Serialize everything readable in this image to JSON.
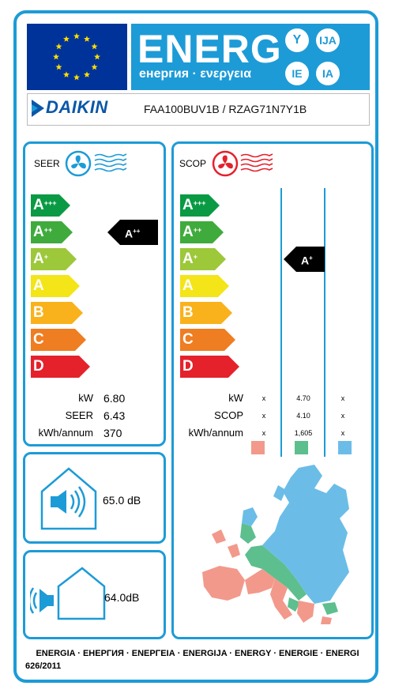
{
  "header": {
    "energ_word": "ENERG",
    "energ_sub": "енергия · ενεργεια",
    "suffixes": [
      "Y",
      "IJA",
      "IE",
      "IA"
    ]
  },
  "supplier": {
    "brand": "DAIKIN",
    "model": "FAA100BUV1B / RZAG71N7Y1B"
  },
  "cooling": {
    "label": "SEER",
    "classes": [
      {
        "letter": "A",
        "plus": "+++",
        "color": "#0a9a44",
        "width": 50
      },
      {
        "letter": "A",
        "plus": "++",
        "color": "#3fab3c",
        "width": 53
      },
      {
        "letter": "A",
        "plus": "+",
        "color": "#9dc83a",
        "width": 58
      },
      {
        "letter": "A",
        "plus": "",
        "color": "#f3e518",
        "width": 62
      },
      {
        "letter": "B",
        "plus": "",
        "color": "#f9b21c",
        "width": 66
      },
      {
        "letter": "C",
        "plus": "",
        "color": "#ef7d21",
        "width": 70
      },
      {
        "letter": "D",
        "plus": "",
        "color": "#e5212c",
        "width": 75
      }
    ],
    "rating": {
      "letter": "A",
      "plus": "++",
      "row": 1
    },
    "specs": [
      {
        "label": "kW",
        "value": "6.80"
      },
      {
        "label": "SEER",
        "value": "6.43"
      },
      {
        "label": "kWh/annum",
        "value": "370"
      }
    ]
  },
  "heating": {
    "label": "SCOP",
    "classes": [
      {
        "letter": "A",
        "plus": "+++",
        "color": "#0a9a44",
        "width": 50
      },
      {
        "letter": "A",
        "plus": "++",
        "color": "#3fab3c",
        "width": 55
      },
      {
        "letter": "A",
        "plus": "+",
        "color": "#9dc83a",
        "width": 58
      },
      {
        "letter": "A",
        "plus": "",
        "color": "#f3e518",
        "width": 62
      },
      {
        "letter": "B",
        "plus": "",
        "color": "#f9b21c",
        "width": 66
      },
      {
        "letter": "C",
        "plus": "",
        "color": "#ef7d21",
        "width": 70
      },
      {
        "letter": "D",
        "plus": "",
        "color": "#e5212c",
        "width": 75
      }
    ],
    "rating": {
      "letter": "A",
      "plus": "+",
      "row": 2
    },
    "specs": [
      {
        "label": "kW",
        "warmer": "x",
        "average": "4.70",
        "colder": "x"
      },
      {
        "label": "SCOP",
        "warmer": "x",
        "average": "4.10",
        "colder": "x"
      },
      {
        "label": "kWh/annum",
        "warmer": "x",
        "average": "1,605",
        "colder": "x"
      }
    ],
    "zone_colors": [
      "#f2998b",
      "#5dbf8d",
      "#6bbde8"
    ]
  },
  "noise": {
    "indoor": {
      "value": "65.0",
      "unit": "dB"
    },
    "outdoor": {
      "value": "64.0",
      "unit": "dB"
    }
  },
  "footer": {
    "languages": "ENERGIA · ЕНЕРГИЯ · ΕΝΕΡΓΕΙΑ · ENERGIJA · ENERGY · ENERGIE · ENERGI",
    "regulation": "626/2011"
  }
}
